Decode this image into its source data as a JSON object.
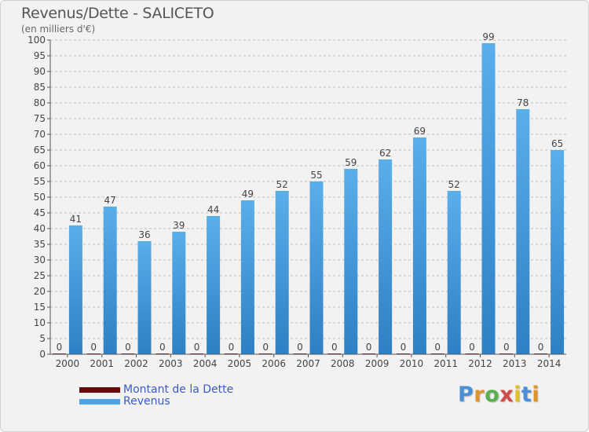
{
  "title": "Revenus/Dette - SALICETO",
  "subtitle": "(en milliers d'€)",
  "colors": {
    "debt": "#6b0a0a",
    "revenue": "#4aa3e6",
    "revenue_dark": "#2f7fc4",
    "axis": "#555555",
    "grid": "#bfbfbf"
  },
  "legend": {
    "debt_label": "Montant de la Dette",
    "revenue_label": "Revenus"
  },
  "logo": {
    "text": "Proxiti"
  },
  "chart_data": {
    "type": "bar",
    "categories": [
      "2000",
      "2001",
      "2002",
      "2003",
      "2004",
      "2005",
      "2006",
      "2007",
      "2008",
      "2009",
      "2010",
      "2011",
      "2012",
      "2013",
      "2014"
    ],
    "series": [
      {
        "name": "Montant de la Dette",
        "values": [
          0,
          0,
          0,
          0,
          0,
          0,
          0,
          0,
          0,
          0,
          0,
          0,
          0,
          0,
          0
        ]
      },
      {
        "name": "Revenus",
        "values": [
          41,
          47,
          36,
          39,
          44,
          49,
          52,
          55,
          59,
          62,
          69,
          52,
          99,
          78,
          65
        ]
      }
    ],
    "ylim": [
      0,
      100
    ],
    "yticks": [
      0,
      5,
      10,
      15,
      20,
      25,
      30,
      35,
      40,
      45,
      50,
      55,
      60,
      65,
      70,
      75,
      80,
      85,
      90,
      95,
      100
    ],
    "grid": true,
    "legend_position": "bottom-left"
  }
}
